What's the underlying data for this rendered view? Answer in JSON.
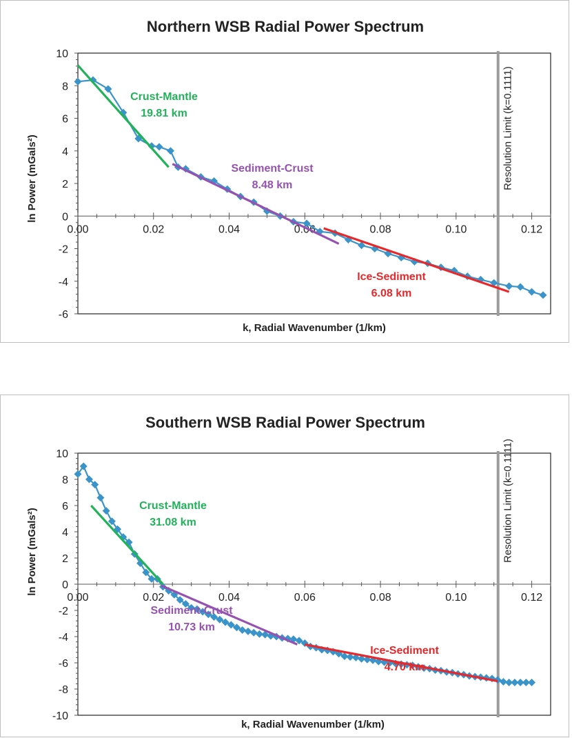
{
  "chart_data": [
    {
      "type": "scatter",
      "title": "Northern WSB Radial Power Spectrum",
      "xlabel": "k, Radial Wavenumber (1/km)",
      "ylabel": "ln Power (mGals²)",
      "xlim": [
        0,
        0.125
      ],
      "ylim": [
        -6,
        10
      ],
      "x_ticks": [
        "0.00",
        "0.02",
        "0.04",
        "0.06",
        "0.08",
        "0.10",
        "0.12"
      ],
      "y_ticks": [
        "10",
        "8",
        "6",
        "4",
        "2",
        "0",
        "-2",
        "-4",
        "-6"
      ],
      "grid": false,
      "series": [
        {
          "color": "#3a93c9",
          "marker": "diamond",
          "x": [
            0.0,
            0.004,
            0.008,
            0.012,
            0.016,
            0.0195,
            0.0215,
            0.0245,
            0.0265,
            0.0285,
            0.0325,
            0.036,
            0.0395,
            0.043,
            0.0465,
            0.05,
            0.0535,
            0.057,
            0.0605,
            0.064,
            0.068,
            0.0715,
            0.075,
            0.0785,
            0.082,
            0.0855,
            0.089,
            0.0925,
            0.096,
            0.0995,
            0.103,
            0.1065,
            0.11,
            0.114,
            0.117,
            0.12,
            0.123
          ],
          "y": [
            8.25,
            8.35,
            7.8,
            6.35,
            4.75,
            4.3,
            4.25,
            4.0,
            3.0,
            2.9,
            2.4,
            2.15,
            1.65,
            1.2,
            0.85,
            0.3,
            0.0,
            -0.35,
            -0.45,
            -0.95,
            -1.05,
            -1.45,
            -1.8,
            -2.0,
            -2.3,
            -2.55,
            -2.8,
            -2.9,
            -3.15,
            -3.35,
            -3.7,
            -3.9,
            -4.1,
            -4.3,
            -4.35,
            -4.65,
            -4.85
          ]
        }
      ],
      "fit_lines": [
        {
          "label": "Crust-Mantle",
          "depth": "19.81 km",
          "color": "#22b25a",
          "x": [
            0.0,
            0.024
          ],
          "y": [
            9.25,
            3.0
          ]
        },
        {
          "label": "Sediment-Crust",
          "depth": "8.48 km",
          "color": "#9552b0",
          "x": [
            0.025,
            0.069
          ],
          "y": [
            3.2,
            -1.7
          ]
        },
        {
          "label": "Ice-Sediment",
          "depth": "6.08 km",
          "color": "#e8282a",
          "x": [
            0.065,
            0.114
          ],
          "y": [
            -0.75,
            -4.65
          ]
        }
      ],
      "annotation": {
        "label": "Resolution Limit (k=0.1111)",
        "x": 0.1111,
        "color": "#9c9c9c"
      }
    },
    {
      "type": "scatter",
      "title": "Southern WSB Radial Power Spectrum",
      "xlabel": "k, Radial Wavenumber (1/km)",
      "ylabel": "ln Power (mGals²)",
      "xlim": [
        0,
        0.125
      ],
      "ylim": [
        -10,
        10
      ],
      "x_ticks": [
        "0.00",
        "0.02",
        "0.04",
        "0.06",
        "0.08",
        "0.10",
        "0.12"
      ],
      "y_ticks": [
        "10",
        "8",
        "6",
        "4",
        "2",
        "0",
        "-2",
        "-4",
        "-6",
        "-8",
        "-10"
      ],
      "grid": false,
      "series": [
        {
          "color": "#3a93c9",
          "marker": "diamond",
          "x": [
            0.0,
            0.0015,
            0.003,
            0.0045,
            0.006,
            0.0075,
            0.009,
            0.0105,
            0.012,
            0.0135,
            0.015,
            0.0165,
            0.018,
            0.0195,
            0.021,
            0.0225,
            0.024,
            0.0255,
            0.027,
            0.0285,
            0.03,
            0.0315,
            0.033,
            0.0345,
            0.036,
            0.0375,
            0.039,
            0.0405,
            0.042,
            0.0435,
            0.045,
            0.0465,
            0.048,
            0.0495,
            0.051,
            0.0525,
            0.054,
            0.0555,
            0.057,
            0.0585,
            0.06,
            0.0615,
            0.063,
            0.0645,
            0.066,
            0.0675,
            0.069,
            0.0705,
            0.072,
            0.0735,
            0.075,
            0.0765,
            0.078,
            0.0795,
            0.081,
            0.0825,
            0.084,
            0.0855,
            0.087,
            0.0885,
            0.09,
            0.0915,
            0.093,
            0.0945,
            0.096,
            0.0975,
            0.099,
            0.1005,
            0.102,
            0.1035,
            0.105,
            0.1065,
            0.108,
            0.1095,
            0.111,
            0.1125,
            0.114,
            0.1155,
            0.117,
            0.1185,
            0.12
          ],
          "y": [
            8.4,
            9.0,
            8.0,
            7.6,
            6.6,
            5.6,
            4.8,
            4.2,
            3.6,
            3.2,
            2.3,
            1.6,
            0.9,
            0.4,
            0.4,
            -0.2,
            -0.5,
            -0.8,
            -1.2,
            -1.5,
            -1.8,
            -1.9,
            -2.1,
            -2.3,
            -2.5,
            -2.7,
            -2.9,
            -3.1,
            -3.3,
            -3.5,
            -3.6,
            -3.7,
            -3.8,
            -3.85,
            -3.95,
            -4.0,
            -4.1,
            -4.15,
            -4.2,
            -4.3,
            -4.5,
            -4.75,
            -4.85,
            -5.0,
            -5.05,
            -5.15,
            -5.3,
            -5.5,
            -5.55,
            -5.6,
            -5.7,
            -5.75,
            -5.8,
            -5.9,
            -5.95,
            -6.0,
            -6.05,
            -6.1,
            -6.15,
            -6.2,
            -6.3,
            -6.4,
            -6.45,
            -6.55,
            -6.6,
            -6.7,
            -6.75,
            -6.85,
            -6.9,
            -7.0,
            -7.05,
            -7.1,
            -7.15,
            -7.2,
            -7.3,
            -7.45,
            -7.5,
            -7.5,
            -7.5,
            -7.5,
            -7.5
          ]
        }
      ],
      "fit_lines": [
        {
          "label": "Crust-Mantle",
          "depth": "31.08 km",
          "color": "#22b25a",
          "x": [
            0.0035,
            0.0225
          ],
          "y": [
            6.0,
            0.0
          ]
        },
        {
          "label": "Sediment-Crust",
          "depth": "10.73 km",
          "color": "#9552b0",
          "x": [
            0.022,
            0.058
          ],
          "y": [
            -0.1,
            -4.6
          ]
        },
        {
          "label": "Ice-Sediment",
          "depth": "4.70 km",
          "color": "#e8282a",
          "x": [
            0.06,
            0.111
          ],
          "y": [
            -4.6,
            -7.4
          ]
        }
      ],
      "annotation": {
        "label": "Resolution Limit (k=0.1111)",
        "x": 0.1111,
        "color": "#9c9c9c"
      }
    }
  ]
}
